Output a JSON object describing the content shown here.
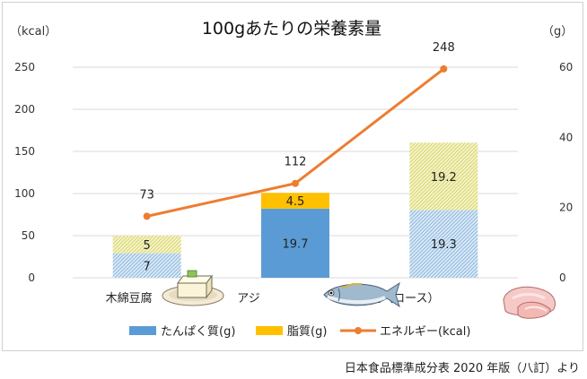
{
  "source_note": "日本食品標準成分表 2020 年版（八訂）より",
  "chart_data": {
    "type": "bar",
    "title": "100gあたりの栄養素量",
    "categories": [
      "木綿豆腐",
      "アジ",
      "豚肉（ロース）"
    ],
    "left_axis": {
      "unit_label": "（kcal）",
      "ylim": [
        0,
        250
      ],
      "ticks": [
        0,
        50,
        100,
        150,
        200,
        250
      ]
    },
    "right_axis": {
      "unit_label": "（g）",
      "ylim": [
        0,
        60
      ],
      "ticks": [
        0,
        20,
        40,
        60
      ]
    },
    "series": [
      {
        "name": "たんぱく質(g)",
        "kind": "stacked-bar",
        "axis": "right",
        "color": "#5b9bd5",
        "values": [
          7,
          19.7,
          19.3
        ],
        "labels": [
          "7",
          "19.7",
          "19.3"
        ]
      },
      {
        "name": "脂質(g)",
        "kind": "stacked-bar",
        "axis": "right",
        "color": "#ffc000",
        "values": [
          5,
          4.5,
          19.2
        ],
        "labels": [
          "5",
          "4.5",
          "19.2"
        ]
      },
      {
        "name": "エネルギー(kcal)",
        "kind": "line",
        "axis": "left",
        "color": "#ed7d31",
        "values": [
          73,
          112,
          248
        ],
        "labels": [
          "73",
          "112",
          "248"
        ]
      }
    ],
    "hatched_categories": [
      0,
      2
    ],
    "grid": true,
    "legend_position": "bottom",
    "icons": [
      "tofu-icon",
      "fish-icon",
      "pork-icon"
    ]
  }
}
